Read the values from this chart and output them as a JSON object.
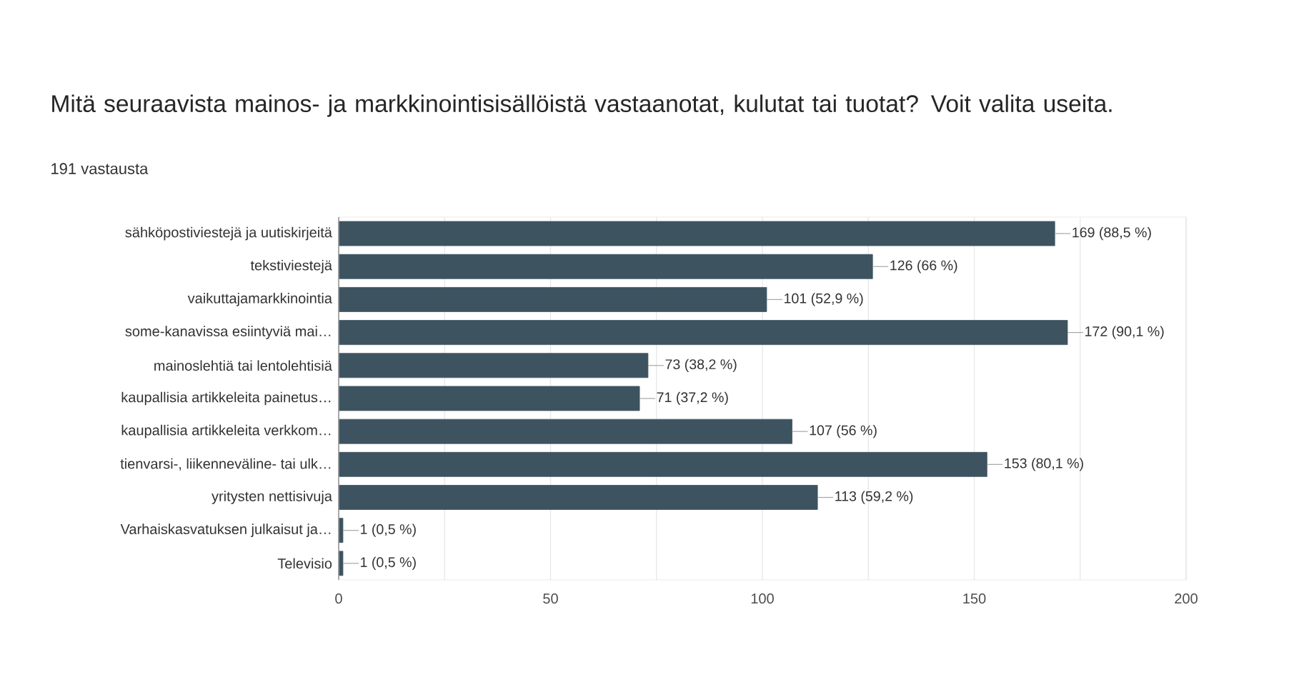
{
  "chart_data": {
    "type": "bar",
    "orientation": "horizontal",
    "title": "Mitä seuraavista mainos- ja markkinointisisällöistä vastaanotat, kulutat tai tuotat? Voit valita useita.",
    "subtitle": "191 vastausta",
    "categories": [
      "sähköpostiviestejä ja uutiskirjeitä",
      "tekstiviestejä",
      "vaikuttajamarkkinointia",
      "some-kanavissa esiintyviä mai…",
      "mainoslehtiä tai lentolehtisiä",
      "kaupallisia artikkeleita painetus…",
      "kaupallisia artikkeleita verkkom…",
      "tienvarsi-, liikenneväline- tai ulk…",
      "yritysten nettisivuja",
      "Varhaiskasvatuksen julkaisut ja…",
      "Televisio"
    ],
    "values": [
      169,
      126,
      101,
      172,
      73,
      71,
      107,
      153,
      113,
      1,
      1
    ],
    "value_labels": [
      "169 (88,5 %)",
      "126 (66 %)",
      "101 (52,9 %)",
      "172 (90,1 %)",
      "73 (38,2 %)",
      "71 (37,2 %)",
      "107 (56 %)",
      "153 (80,1 %)",
      "113 (59,2 %)",
      "1 (0,5 %)",
      "1 (0,5 %)"
    ],
    "color": "#3d5360",
    "xlim": [
      0,
      200
    ],
    "xticks": [
      0,
      {
        "value": 25,
        "label": null
      },
      50,
      {
        "value": 75,
        "label": null
      },
      100,
      {
        "value": 125,
        "label": null
      },
      150,
      {
        "value": 175,
        "label": null
      },
      200
    ],
    "grid": "x"
  }
}
